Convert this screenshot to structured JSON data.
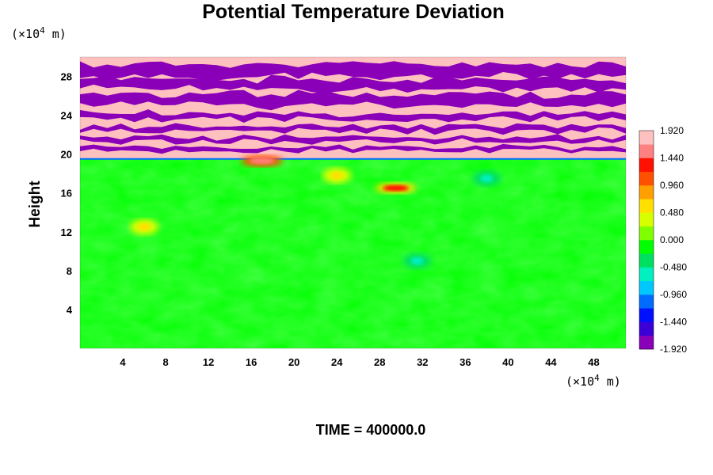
{
  "chart_data": {
    "type": "heatmap",
    "title": "Potential Temperature Deviation",
    "xlabel": "",
    "ylabel": "Height",
    "x_unit_prefix": "(×10",
    "x_unit_exp": "4",
    "x_unit_suffix": " m)",
    "y_unit_prefix": "(×10",
    "y_unit_exp": "4",
    "y_unit_suffix": " m)",
    "xlim": [
      0,
      51
    ],
    "ylim": [
      0,
      30
    ],
    "x_ticks": [
      4,
      8,
      12,
      16,
      20,
      24,
      28,
      32,
      36,
      40,
      44,
      48
    ],
    "y_ticks": [
      4,
      8,
      12,
      16,
      20,
      24,
      28
    ],
    "colorbar": {
      "range": [
        -1.92,
        1.92
      ],
      "tick_labels": [
        "1.920",
        "1.440",
        "0.960",
        "0.480",
        "0.000",
        "-0.480",
        "-0.960",
        "-1.440",
        "-1.920"
      ],
      "palette": [
        "#8a00b8",
        "#3a00d6",
        "#0010ff",
        "#006cff",
        "#00c8ff",
        "#00f0c0",
        "#00e060",
        "#00ff00",
        "#80ff00",
        "#d8ff00",
        "#ffe000",
        "#ffa000",
        "#ff5000",
        "#ff1000",
        "#ff8080",
        "#ffc0c0"
      ]
    },
    "features": [
      {
        "name": "stratified alternating layers",
        "y_range": [
          19.5,
          30
        ],
        "values": "alternating positive (about 1.92) and negative (about -1.92) bands"
      },
      {
        "name": "lower troposphere",
        "y_range": [
          0,
          19.5
        ],
        "values": "near 0.0"
      },
      {
        "name": "positive anomaly",
        "x": 17,
        "y": 19.3,
        "value": 1.6
      },
      {
        "name": "positive anomaly",
        "x": 29.5,
        "y": 16.5,
        "value": 1.2
      },
      {
        "name": "positive anomaly",
        "x": 24,
        "y": 17.8,
        "value": 0.6
      },
      {
        "name": "positive anomaly",
        "x": 6,
        "y": 12.5,
        "value": 0.6
      },
      {
        "name": "negative anomaly",
        "x": 31.5,
        "y": 9,
        "value": -0.5
      },
      {
        "name": "negative anomaly",
        "x": 38,
        "y": 17.5,
        "value": -0.5
      }
    ]
  },
  "footer": {
    "time_label": "TIME = 400000.0"
  }
}
